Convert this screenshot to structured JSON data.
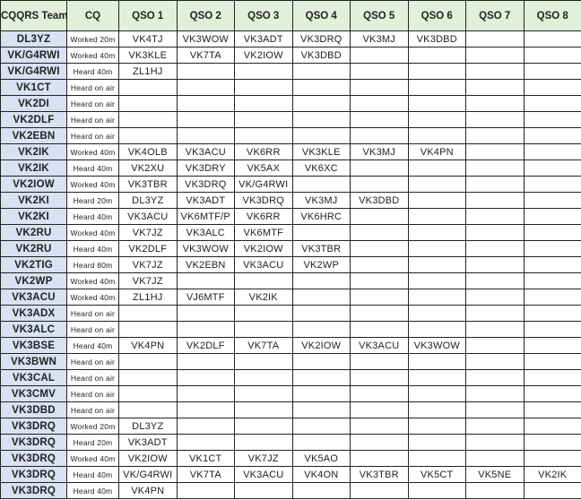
{
  "headers": [
    "CQQRS Team Member",
    "CQ",
    "QSO 1",
    "QSO 2",
    "QSO 3",
    "QSO 4",
    "QSO 5",
    "QSO 6",
    "QSO 7",
    "QSO 8"
  ],
  "rows": [
    {
      "member": "DL3YZ",
      "cq": "Worked 20m",
      "qsos": [
        "VK4TJ",
        "VK3WOW",
        "VK3ADT",
        "VK3DRQ",
        "VK3MJ",
        "VK3DBD",
        "",
        ""
      ]
    },
    {
      "member": "VK/G4RWI",
      "cq": "Worked 40m",
      "qsos": [
        "VK3KLE",
        "VK7TA",
        "VK2IOW",
        "VK3DBD",
        "",
        "",
        "",
        ""
      ]
    },
    {
      "member": "VK/G4RWI",
      "cq": "Heard 40m",
      "qsos": [
        "ZL1HJ",
        "",
        "",
        "",
        "",
        "",
        "",
        ""
      ]
    },
    {
      "member": "VK1CT",
      "cq": "Heard on air",
      "qsos": [
        "",
        "",
        "",
        "",
        "",
        "",
        "",
        ""
      ]
    },
    {
      "member": "VK2DI",
      "cq": "Heard on air",
      "qsos": [
        "",
        "",
        "",
        "",
        "",
        "",
        "",
        ""
      ]
    },
    {
      "member": "VK2DLF",
      "cq": "Heard on air",
      "qsos": [
        "",
        "",
        "",
        "",
        "",
        "",
        "",
        ""
      ]
    },
    {
      "member": "VK2EBN",
      "cq": "Heard on air",
      "qsos": [
        "",
        "",
        "",
        "",
        "",
        "",
        "",
        ""
      ]
    },
    {
      "member": "VK2IK",
      "cq": "Worked 40m",
      "qsos": [
        "VK4OLB",
        "VK3ACU",
        "VK6RR",
        "VK3KLE",
        "VK3MJ",
        "VK4PN",
        "",
        ""
      ]
    },
    {
      "member": "VK2IK",
      "cq": "Heard 40m",
      "qsos": [
        "VK2XU",
        "VK3DRY",
        "VK5AX",
        "VK6XC",
        "",
        "",
        "",
        ""
      ]
    },
    {
      "member": "VK2IOW",
      "cq": "Worked 40m",
      "qsos": [
        "VK3TBR",
        "VK3DRQ",
        "VK/G4RWI",
        "",
        "",
        "",
        "",
        ""
      ]
    },
    {
      "member": "VK2KI",
      "cq": "Heard 20m",
      "qsos": [
        "DL3YZ",
        "VK3ADT",
        "VK3DRQ",
        "VK3MJ",
        "VK3DBD",
        "",
        "",
        ""
      ]
    },
    {
      "member": "VK2KI",
      "cq": "Heard 40m",
      "qsos": [
        "VK3ACU",
        "VK6MTF/P",
        "VK6RR",
        "VK6HRC",
        "",
        "",
        "",
        ""
      ]
    },
    {
      "member": "VK2RU",
      "cq": "Worked 40m",
      "qsos": [
        "VK7JZ",
        "VK3ALC",
        "VK6MTF",
        "",
        "",
        "",
        "",
        ""
      ]
    },
    {
      "member": "VK2RU",
      "cq": "Heard 40m",
      "qsos": [
        "VK2DLF",
        "VK3WOW",
        "VK2IOW",
        "VK3TBR",
        "",
        "",
        "",
        ""
      ]
    },
    {
      "member": "VK2TIG",
      "cq": "Heard 80m",
      "qsos": [
        "VK7JZ",
        "VK2EBN",
        "VK3ACU",
        "VK2WP",
        "",
        "",
        "",
        ""
      ]
    },
    {
      "member": "VK2WP",
      "cq": "Worked 40m",
      "qsos": [
        "VK7JZ",
        "",
        "",
        "",
        "",
        "",
        "",
        ""
      ]
    },
    {
      "member": "VK3ACU",
      "cq": "Worked 40m",
      "qsos": [
        "ZL1HJ",
        "VJ6MTF",
        "VK2IK",
        "",
        "",
        "",
        "",
        ""
      ]
    },
    {
      "member": "VK3ADX",
      "cq": "Heard on air",
      "qsos": [
        "",
        "",
        "",
        "",
        "",
        "",
        "",
        ""
      ]
    },
    {
      "member": "VK3ALC",
      "cq": "Heard on air",
      "qsos": [
        "",
        "",
        "",
        "",
        "",
        "",
        "",
        ""
      ]
    },
    {
      "member": "VK3BSE",
      "cq": "Heard 40m",
      "qsos": [
        "VK4PN",
        "VK2DLF",
        "VK7TA",
        "VK2IOW",
        "VK3ACU",
        "VK3WOW",
        "",
        ""
      ]
    },
    {
      "member": "VK3BWN",
      "cq": "Heard on air",
      "qsos": [
        "",
        "",
        "",
        "",
        "",
        "",
        "",
        ""
      ]
    },
    {
      "member": "VK3CAL",
      "cq": "Heard on air",
      "qsos": [
        "",
        "",
        "",
        "",
        "",
        "",
        "",
        ""
      ]
    },
    {
      "member": "VK3CMV",
      "cq": "Heard on air",
      "qsos": [
        "",
        "",
        "",
        "",
        "",
        "",
        "",
        ""
      ]
    },
    {
      "member": "VK3DBD",
      "cq": "Heard on air",
      "qsos": [
        "",
        "",
        "",
        "",
        "",
        "",
        "",
        ""
      ]
    },
    {
      "member": "VK3DRQ",
      "cq": "Worked 20m",
      "qsos": [
        "DL3YZ",
        "",
        "",
        "",
        "",
        "",
        "",
        ""
      ]
    },
    {
      "member": "VK3DRQ",
      "cq": "Heard 20m",
      "qsos": [
        "VK3ADT",
        "",
        "",
        "",
        "",
        "",
        "",
        ""
      ]
    },
    {
      "member": "VK3DRQ",
      "cq": "Worked 40m",
      "qsos": [
        "VK2IOW",
        "VK1CT",
        "VK7JZ",
        "VK5AO",
        "",
        "",
        "",
        ""
      ]
    },
    {
      "member": "VK3DRQ",
      "cq": "Heard 40m",
      "qsos": [
        "VK/G4RWI",
        "VK7TA",
        "VK3ACU",
        "VK4ON",
        "VK3TBR",
        "VK5CT",
        "VK5NE",
        "VK2IK"
      ]
    },
    {
      "member": "VK3DRQ",
      "cq": "Heard 40m",
      "qsos": [
        "VK4PN",
        "",
        "",
        "",
        "",
        "",
        "",
        ""
      ]
    }
  ]
}
